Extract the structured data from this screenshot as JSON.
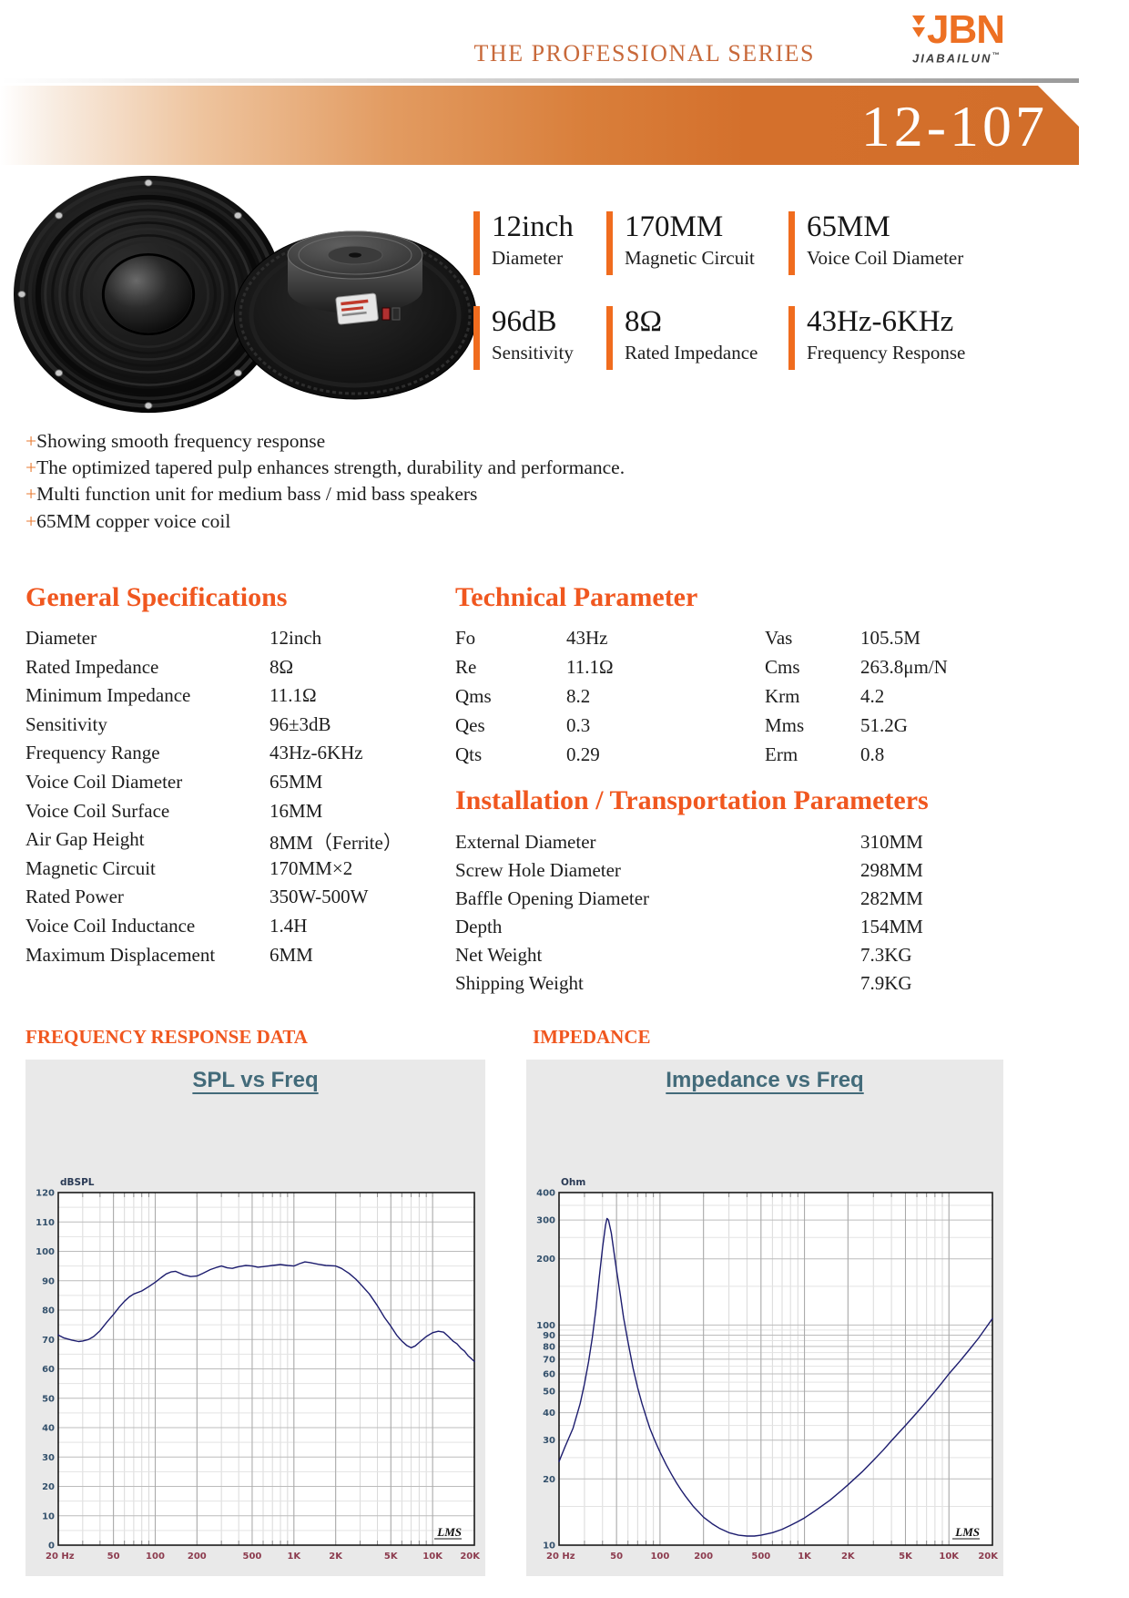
{
  "header": {
    "series_title": "THE PROFESSIONAL SERIES",
    "logo": {
      "text": "JBN",
      "subtext": "JIABAILUN",
      "tm": "™"
    },
    "model": "12-107"
  },
  "key_specs": [
    {
      "value": "12inch",
      "label": "Diameter"
    },
    {
      "value": "170MM",
      "label": "Magnetic Circuit"
    },
    {
      "value": "65MM",
      "label": "Voice Coil Diameter"
    },
    {
      "value": "96dB",
      "label": "Sensitivity"
    },
    {
      "value": "8Ω",
      "label": "Rated Impedance"
    },
    {
      "value": "43Hz-6KHz",
      "label": "Frequency Response"
    }
  ],
  "features_prefix": "+",
  "features": [
    "Showing smooth frequency response",
    "The optimized tapered pulp enhances strength, durability and performance.",
    "Multi function unit for medium bass / mid bass speakers",
    "65MM copper voice coil"
  ],
  "general": {
    "title": "General Specifications",
    "rows": [
      {
        "label": "Diameter",
        "value": "12inch"
      },
      {
        "label": "Rated Impedance",
        "value": "8Ω"
      },
      {
        "label": "Minimum Impedance",
        "value": "11.1Ω"
      },
      {
        "label": "Sensitivity",
        "value": "96±3dB"
      },
      {
        "label": "Frequency Range",
        "value": "43Hz-6KHz"
      },
      {
        "label": "Voice Coil Diameter",
        "value": "65MM"
      },
      {
        "label": "Voice Coil Surface",
        "value": "16MM"
      },
      {
        "label": "Air Gap Height",
        "value": "8MM（Ferrite）"
      },
      {
        "label": "Magnetic Circuit",
        "value": "170MM×2"
      },
      {
        "label": "Rated Power",
        "value": "350W-500W"
      },
      {
        "label": "Voice Coil Inductance",
        "value": "1.4H"
      },
      {
        "label": "Maximum Displacement",
        "value": "6MM"
      }
    ]
  },
  "technical": {
    "title": "Technical Parameter",
    "left": [
      {
        "label": "Fo",
        "value": "43Hz"
      },
      {
        "label": "Re",
        "value": "11.1Ω"
      },
      {
        "label": "Qms",
        "value": "8.2"
      },
      {
        "label": "Qes",
        "value": "0.3"
      },
      {
        "label": "Qts",
        "value": "0.29"
      }
    ],
    "right": [
      {
        "label": "Vas",
        "value": "105.5M"
      },
      {
        "label": "Cms",
        "value": "263.8μm/N"
      },
      {
        "label": "Krm",
        "value": "4.2"
      },
      {
        "label": "Mms",
        "value": "51.2G"
      },
      {
        "label": "Erm",
        "value": "0.8"
      }
    ]
  },
  "installation": {
    "title": "Installation / Transportation Parameters",
    "rows": [
      {
        "label": "External Diameter",
        "value": "310MM"
      },
      {
        "label": "Screw Hole Diameter",
        "value": "298MM"
      },
      {
        "label": "Baffle Opening Diameter",
        "value": "282MM"
      },
      {
        "label": "Depth",
        "value": "154MM"
      },
      {
        "label": "Net Weight",
        "value": "7.3KG"
      },
      {
        "label": "Shipping Weight",
        "value": "7.9KG"
      }
    ]
  },
  "colors": {
    "accent_heading": "#f0571f",
    "banner_orange": "#d26e2a",
    "logo_orange": "#ed7023",
    "chart_title": "#436b7a",
    "chart_curve": "#1c1c6e",
    "chart_xtick": "#8c3b4e",
    "chart_ytick": "#33506b"
  },
  "chart_data": [
    {
      "type": "line",
      "section_heading": "FREQUENCY RESPONSE DATA",
      "title": "SPL vs Freq",
      "unit_label": "dBSPL",
      "lms_label": "LMS",
      "x_axis": {
        "scale": "log",
        "min": 20,
        "max": 20000,
        "ticks": [
          {
            "f": 20,
            "label": "20 Hz"
          },
          {
            "f": 50,
            "label": "50"
          },
          {
            "f": 100,
            "label": "100"
          },
          {
            "f": 200,
            "label": "200"
          },
          {
            "f": 500,
            "label": "500"
          },
          {
            "f": 1000,
            "label": "1K"
          },
          {
            "f": 2000,
            "label": "2K"
          },
          {
            "f": 5000,
            "label": "5K"
          },
          {
            "f": 10000,
            "label": "10K"
          },
          {
            "f": 20000,
            "label": "20K"
          }
        ]
      },
      "y_axis": {
        "scale": "linear",
        "min": 0,
        "max": 120,
        "tick_step": 10
      },
      "points": [
        [
          20,
          71.5
        ],
        [
          22,
          70.5
        ],
        [
          25,
          69.8
        ],
        [
          28,
          69.3
        ],
        [
          30,
          69.5
        ],
        [
          33,
          70
        ],
        [
          36,
          71
        ],
        [
          40,
          73
        ],
        [
          45,
          76
        ],
        [
          50,
          78.5
        ],
        [
          55,
          81
        ],
        [
          60,
          83
        ],
        [
          65,
          84.5
        ],
        [
          70,
          85.5
        ],
        [
          80,
          86.5
        ],
        [
          90,
          88
        ],
        [
          100,
          89.5
        ],
        [
          110,
          91
        ],
        [
          120,
          92.3
        ],
        [
          130,
          93
        ],
        [
          140,
          93.2
        ],
        [
          150,
          92.6
        ],
        [
          160,
          92
        ],
        [
          180,
          91.4
        ],
        [
          200,
          91.6
        ],
        [
          220,
          92.5
        ],
        [
          250,
          93.8
        ],
        [
          280,
          94.6
        ],
        [
          300,
          95
        ],
        [
          330,
          94.4
        ],
        [
          360,
          94.2
        ],
        [
          400,
          94.8
        ],
        [
          450,
          95.2
        ],
        [
          500,
          95
        ],
        [
          550,
          94.6
        ],
        [
          600,
          94.8
        ],
        [
          700,
          95.2
        ],
        [
          800,
          95.5
        ],
        [
          900,
          95.2
        ],
        [
          1000,
          95
        ],
        [
          1100,
          95.8
        ],
        [
          1200,
          96.4
        ],
        [
          1300,
          96.2
        ],
        [
          1500,
          95.6
        ],
        [
          1700,
          95.2
        ],
        [
          2000,
          95
        ],
        [
          2200,
          94.2
        ],
        [
          2500,
          92.5
        ],
        [
          2800,
          90.5
        ],
        [
          3000,
          89
        ],
        [
          3500,
          85.5
        ],
        [
          4000,
          81.5
        ],
        [
          4500,
          77.5
        ],
        [
          5000,
          74.5
        ],
        [
          5500,
          71.5
        ],
        [
          6000,
          69.5
        ],
        [
          6500,
          68
        ],
        [
          7000,
          67.2
        ],
        [
          7500,
          67.8
        ],
        [
          8000,
          69
        ],
        [
          9000,
          71
        ],
        [
          10000,
          72.3
        ],
        [
          11000,
          72.8
        ],
        [
          12000,
          72.5
        ],
        [
          13000,
          71
        ],
        [
          14000,
          69.5
        ],
        [
          15000,
          68.5
        ],
        [
          16000,
          67
        ],
        [
          17000,
          66
        ],
        [
          18000,
          64.5
        ],
        [
          19000,
          63.5
        ],
        [
          20000,
          62.5
        ]
      ]
    },
    {
      "type": "line",
      "section_heading": "IMPEDANCE",
      "title": "Impedance vs Freq",
      "unit_label": "Ohm",
      "lms_label": "LMS",
      "x_axis": {
        "scale": "log",
        "min": 20,
        "max": 20000,
        "ticks": [
          {
            "f": 20,
            "label": "20 Hz"
          },
          {
            "f": 50,
            "label": "50"
          },
          {
            "f": 100,
            "label": "100"
          },
          {
            "f": 200,
            "label": "200"
          },
          {
            "f": 500,
            "label": "500"
          },
          {
            "f": 1000,
            "label": "1K"
          },
          {
            "f": 2000,
            "label": "2K"
          },
          {
            "f": 5000,
            "label": "5K"
          },
          {
            "f": 10000,
            "label": "10K"
          },
          {
            "f": 20000,
            "label": "20K"
          }
        ]
      },
      "y_axis": {
        "scale": "log",
        "min": 10,
        "max": 400,
        "ticks": [
          10,
          20,
          30,
          40,
          50,
          60,
          70,
          80,
          90,
          100,
          200,
          300,
          400
        ]
      },
      "points": [
        [
          20,
          24
        ],
        [
          22,
          28
        ],
        [
          25,
          34
        ],
        [
          28,
          44
        ],
        [
          30,
          54
        ],
        [
          32,
          68
        ],
        [
          34,
          88
        ],
        [
          36,
          118
        ],
        [
          38,
          165
        ],
        [
          40,
          225
        ],
        [
          42,
          285
        ],
        [
          43,
          305
        ],
        [
          44,
          300
        ],
        [
          46,
          262
        ],
        [
          48,
          215
        ],
        [
          50,
          178
        ],
        [
          53,
          138
        ],
        [
          56,
          108
        ],
        [
          60,
          84
        ],
        [
          65,
          64
        ],
        [
          70,
          52
        ],
        [
          75,
          44
        ],
        [
          80,
          38.5
        ],
        [
          85,
          34
        ],
        [
          90,
          31
        ],
        [
          95,
          28.5
        ],
        [
          100,
          26.5
        ],
        [
          110,
          23.3
        ],
        [
          120,
          21
        ],
        [
          130,
          19.2
        ],
        [
          140,
          17.8
        ],
        [
          150,
          16.7
        ],
        [
          170,
          15
        ],
        [
          200,
          13.4
        ],
        [
          230,
          12.5
        ],
        [
          260,
          11.9
        ],
        [
          300,
          11.4
        ],
        [
          350,
          11.1
        ],
        [
          400,
          11
        ],
        [
          450,
          11
        ],
        [
          500,
          11.1
        ],
        [
          600,
          11.4
        ],
        [
          700,
          11.8
        ],
        [
          800,
          12.3
        ],
        [
          900,
          12.8
        ],
        [
          1000,
          13.3
        ],
        [
          1200,
          14.4
        ],
        [
          1500,
          16
        ],
        [
          1800,
          17.7
        ],
        [
          2000,
          18.8
        ],
        [
          2500,
          21.5
        ],
        [
          3000,
          24.3
        ],
        [
          3500,
          27
        ],
        [
          4000,
          29.8
        ],
        [
          5000,
          35
        ],
        [
          6000,
          40
        ],
        [
          7000,
          45
        ],
        [
          8000,
          50
        ],
        [
          9000,
          55
        ],
        [
          10000,
          60
        ],
        [
          12000,
          69
        ],
        [
          14000,
          78
        ],
        [
          16000,
          87
        ],
        [
          18000,
          97
        ],
        [
          20000,
          107
        ]
      ]
    }
  ]
}
